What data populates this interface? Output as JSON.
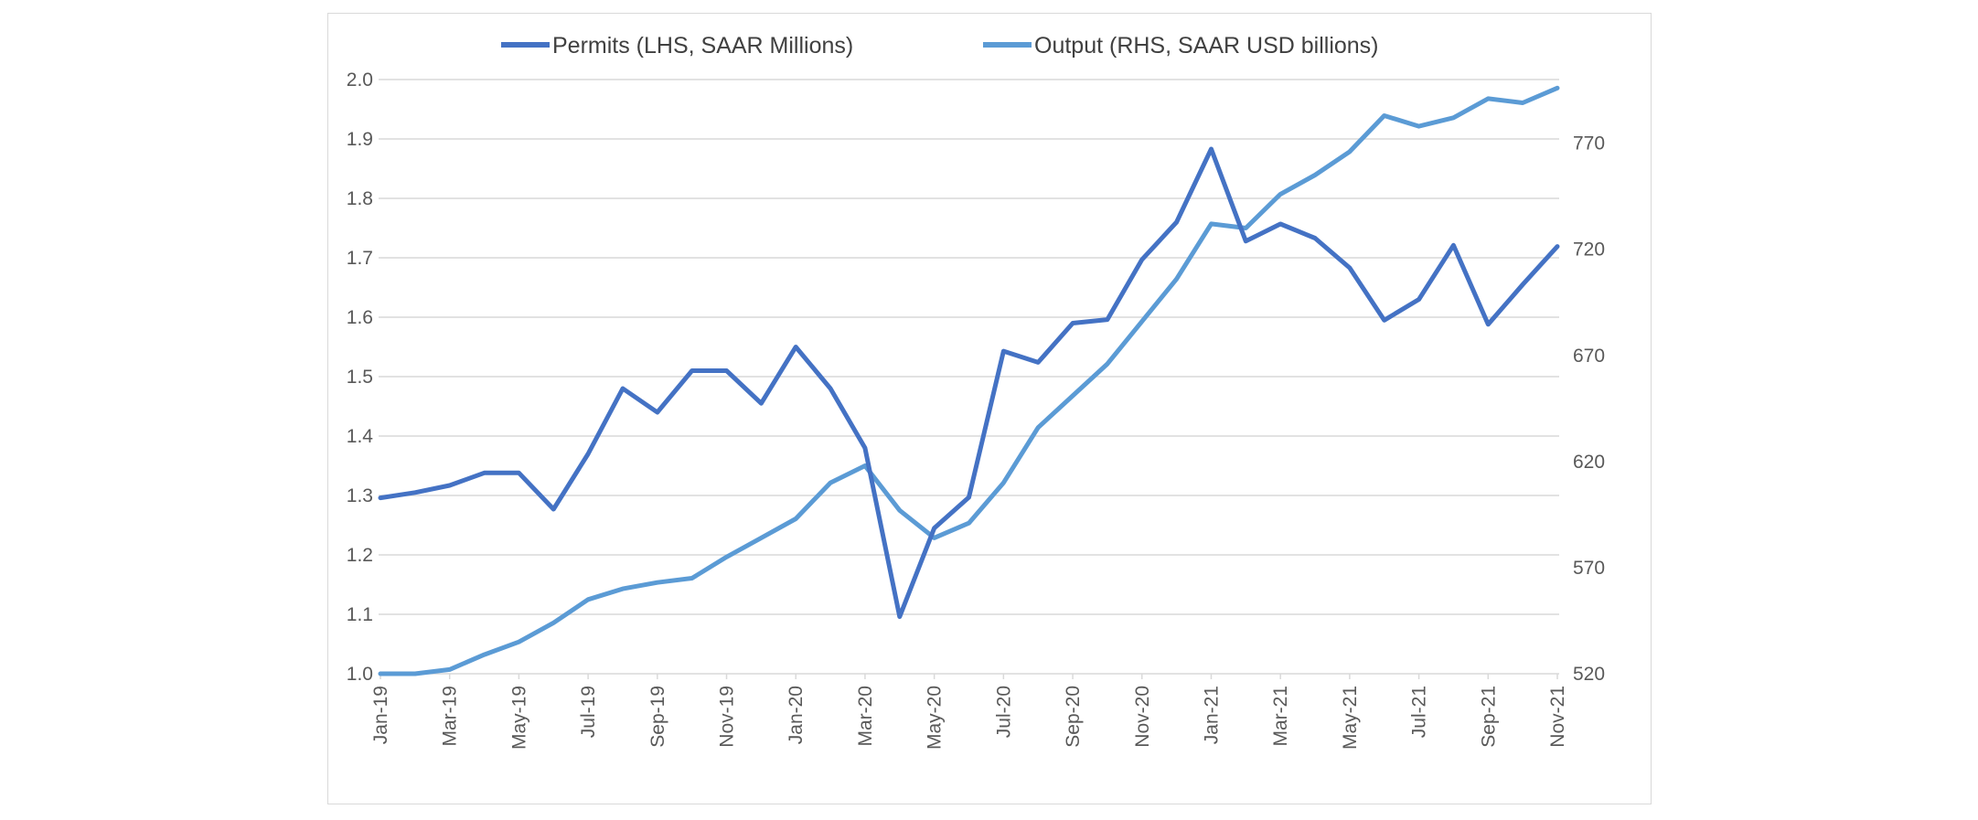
{
  "chart_data": {
    "type": "line",
    "title": "",
    "legend_position": "top",
    "categories": [
      "Jan-19",
      "Feb-19",
      "Mar-19",
      "Apr-19",
      "May-19",
      "Jun-19",
      "Jul-19",
      "Aug-19",
      "Sep-19",
      "Oct-19",
      "Nov-19",
      "Dec-19",
      "Jan-20",
      "Feb-20",
      "Mar-20",
      "Apr-20",
      "May-20",
      "Jun-20",
      "Jul-20",
      "Aug-20",
      "Sep-20",
      "Oct-20",
      "Nov-20",
      "Dec-20",
      "Jan-21",
      "Feb-21",
      "Mar-21",
      "Apr-21",
      "May-21",
      "Jun-21",
      "Jul-21",
      "Aug-21",
      "Sep-21",
      "Oct-21",
      "Nov-21"
    ],
    "x_tick_labels": [
      "Jan-19",
      "Mar-19",
      "May-19",
      "Jul-19",
      "Sep-19",
      "Nov-19",
      "Jan-20",
      "Mar-20",
      "May-20",
      "Jul-20",
      "Sep-20",
      "Nov-20",
      "Jan-21",
      "Mar-21",
      "May-21",
      "Jul-21",
      "Sep-21",
      "Nov-21"
    ],
    "y_left": {
      "label": "",
      "ylim": [
        1.0,
        2.0
      ],
      "ticks": [
        "1.0",
        "1.1",
        "1.2",
        "1.3",
        "1.4",
        "1.5",
        "1.6",
        "1.7",
        "1.8",
        "1.9",
        "2.0"
      ]
    },
    "y_right": {
      "label": "",
      "ylim": [
        520,
        800
      ],
      "ticks": [
        "520",
        "570",
        "620",
        "670",
        "720",
        "770"
      ]
    },
    "grid": true,
    "series": [
      {
        "name": "Permits (LHS, SAAR Millions)",
        "axis": "left",
        "color": "#4472c4",
        "values": [
          1.296,
          1.305,
          1.317,
          1.338,
          1.338,
          1.277,
          1.37,
          1.48,
          1.44,
          1.51,
          1.51,
          1.455,
          1.55,
          1.48,
          1.38,
          1.096,
          1.245,
          1.297,
          1.543,
          1.524,
          1.59,
          1.596,
          1.697,
          1.76,
          1.883,
          1.728,
          1.757,
          1.733,
          1.683,
          1.595,
          1.63,
          1.721,
          1.588,
          1.655,
          1.719
        ]
      },
      {
        "name": "Output (RHS, SAAR USD billions)",
        "axis": "right",
        "color": "#5b9bd5",
        "values": [
          520,
          520,
          522,
          529,
          535,
          544,
          555,
          560,
          563,
          565,
          575,
          584,
          593,
          610,
          618,
          597,
          584,
          591,
          610,
          636,
          651,
          666,
          686,
          706,
          732,
          730,
          746,
          755,
          766,
          783,
          778,
          782,
          791,
          789,
          796
        ]
      }
    ]
  }
}
